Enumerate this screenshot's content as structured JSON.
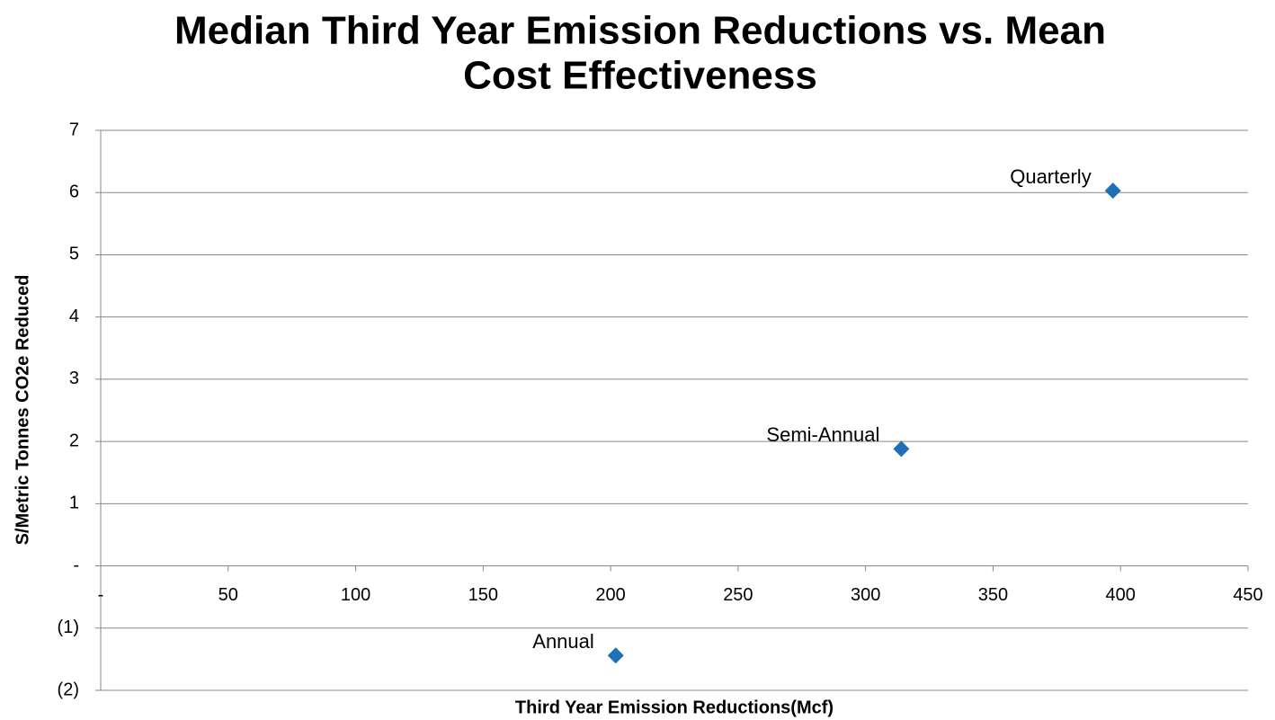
{
  "chart_data": {
    "type": "scatter",
    "title": "Median Third Year Emission Reductions vs. Mean Cost Effectiveness",
    "x_label": "Third Year Emission Reductions(Mcf)",
    "y_label": "S/Metric Tonnes CO2e Reduced",
    "x": [
      202,
      314,
      397
    ],
    "values": [
      -1.44,
      1.88,
      6.03
    ],
    "point_labels": [
      "Annual",
      "Semi-Annual",
      "Quarterly"
    ],
    "color": "#1f70b5",
    "xlim": [
      0,
      450
    ],
    "xticks": [
      {
        "value": 0,
        "label": "-"
      },
      50,
      100,
      150,
      200,
      250,
      300,
      350,
      400,
      450
    ],
    "ylim": [
      -2,
      7
    ],
    "yticks": [
      {
        "value": -2,
        "label": "(2)"
      },
      {
        "value": -1,
        "label": "(1)"
      },
      {
        "value": 0,
        "label": "-"
      },
      1,
      2,
      3,
      4,
      5,
      6,
      7
    ],
    "grid": true
  }
}
